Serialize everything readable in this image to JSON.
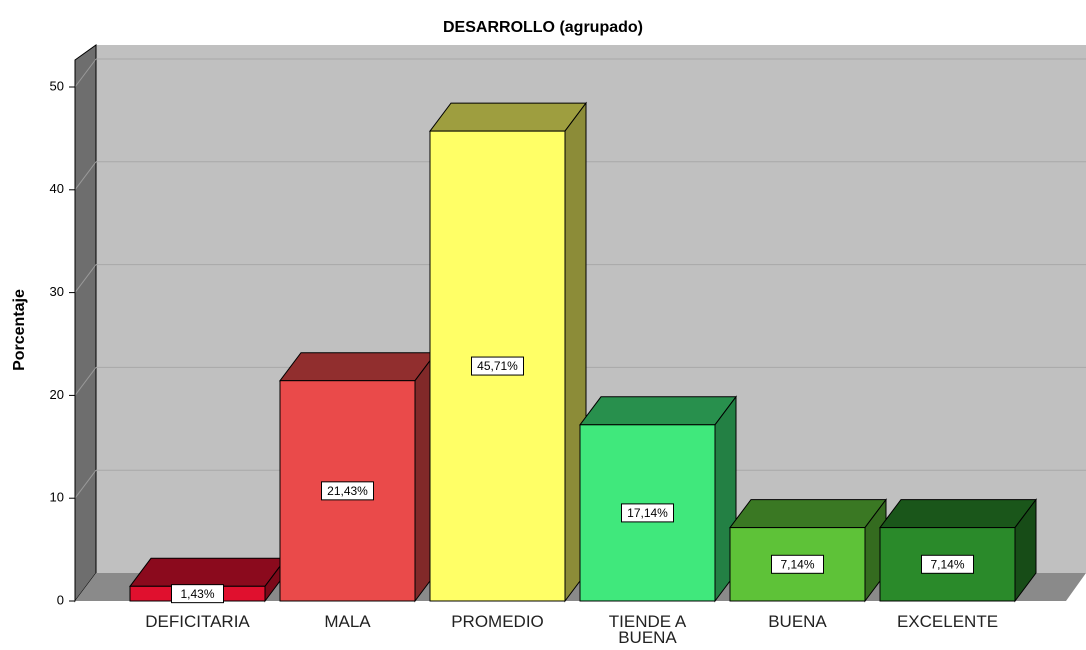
{
  "chart_data": {
    "type": "bar3d",
    "title": "DESARROLLO (agrupado)",
    "y_label": "Porcentaje",
    "categories": [
      "DEFICITARIA",
      "MALA",
      "PROMEDIO",
      "TIENDE A BUENA",
      "BUENA",
      "EXCELENTE"
    ],
    "values": [
      1.43,
      21.43,
      45.71,
      17.14,
      7.14,
      7.14
    ],
    "value_labels": [
      "1,43%",
      "21,43%",
      "45,71%",
      "17,14%",
      "7,14%",
      "7,14%"
    ],
    "colors": [
      "#e0102e",
      "#ea4a4a",
      "#ffff66",
      "#40e87c",
      "#5ec238",
      "#2a8a2a"
    ],
    "ylim": [
      0,
      53
    ],
    "yticks": [
      0,
      10,
      20,
      30,
      40,
      50
    ],
    "grid": true
  }
}
